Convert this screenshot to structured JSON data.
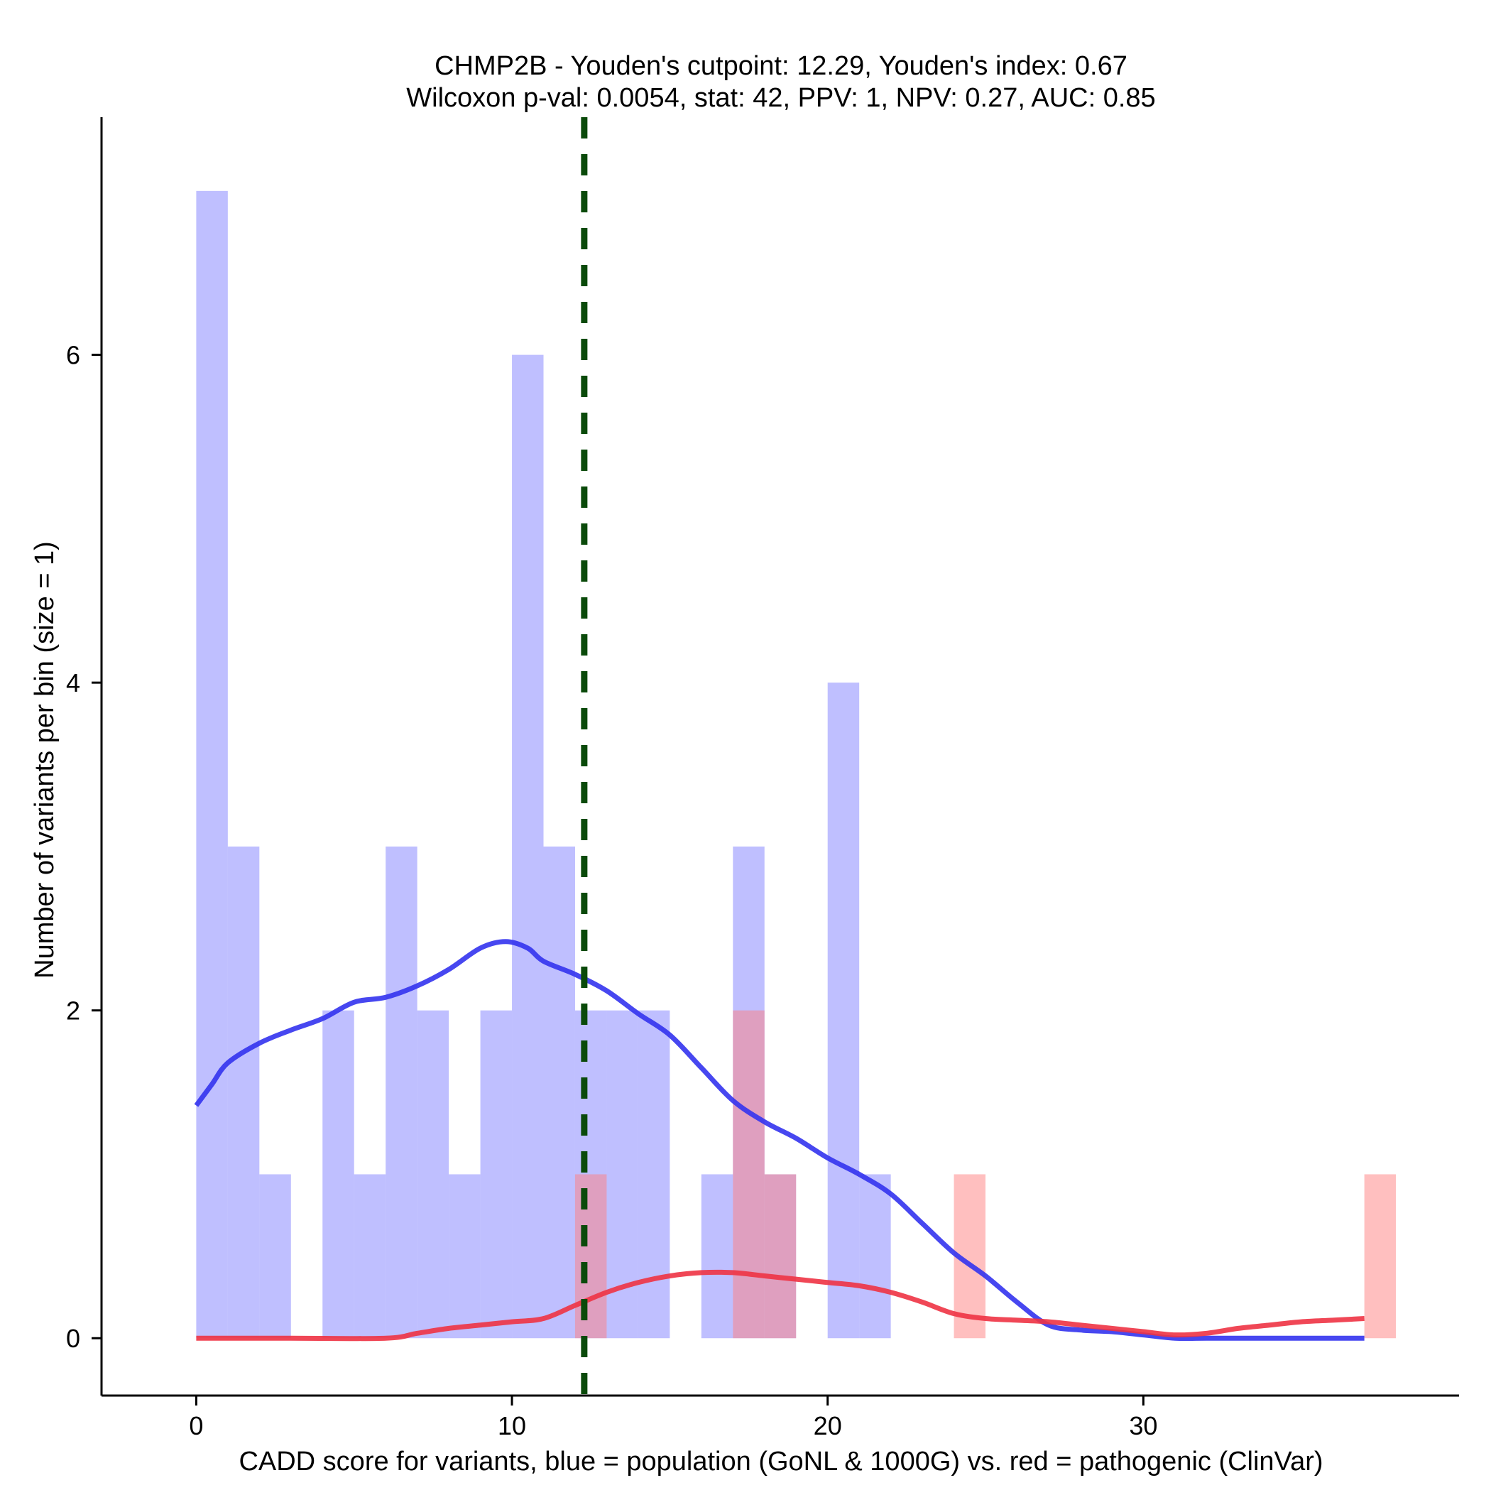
{
  "chart_data": {
    "type": "bar",
    "title_line1": "CHMP2B - Youden's cutpoint: 12.29, Youden's index: 0.67",
    "title_line2": "Wilcoxon p-val: 0.0054, stat: 42, PPV: 1, NPV: 0.27, AUC: 0.85",
    "xlabel": "CADD score for variants, blue = population (GoNL & 1000G) vs. red = pathogenic (ClinVar)",
    "ylabel": "Number of variants per bin (size = 1)",
    "xlim": [
      -3,
      40
    ],
    "ylim": [
      -0.35,
      7.45
    ],
    "x_ticks": [
      0,
      10,
      20,
      30
    ],
    "x_tick_labels": [
      "0",
      "10",
      "20",
      "30"
    ],
    "y_ticks": [
      0,
      2,
      4,
      6
    ],
    "y_tick_labels": [
      "0",
      "2",
      "4",
      "6"
    ],
    "bin_width": 1,
    "cutpoint": 12.29,
    "colors": {
      "population_bar": "#8080ff",
      "pathogenic_bar": "#ff8080",
      "population_line": "#3333ee",
      "pathogenic_line": "#ee3344",
      "cutpoint_line": "#0a4a0a"
    },
    "series": [
      {
        "name": "population (GoNL & 1000G)",
        "bins": [
          {
            "x": 0,
            "count": 7
          },
          {
            "x": 1,
            "count": 3
          },
          {
            "x": 2,
            "count": 1
          },
          {
            "x": 4,
            "count": 2
          },
          {
            "x": 5,
            "count": 1
          },
          {
            "x": 6,
            "count": 3
          },
          {
            "x": 7,
            "count": 2
          },
          {
            "x": 8,
            "count": 1
          },
          {
            "x": 9,
            "count": 2
          },
          {
            "x": 10,
            "count": 6
          },
          {
            "x": 11,
            "count": 3
          },
          {
            "x": 12,
            "count": 2
          },
          {
            "x": 13,
            "count": 2
          },
          {
            "x": 14,
            "count": 2
          },
          {
            "x": 16,
            "count": 1
          },
          {
            "x": 17,
            "count": 3
          },
          {
            "x": 18,
            "count": 1
          },
          {
            "x": 20,
            "count": 4
          },
          {
            "x": 21,
            "count": 1
          }
        ],
        "density": [
          [
            0,
            1.42
          ],
          [
            0.5,
            1.55
          ],
          [
            1,
            1.68
          ],
          [
            2,
            1.8
          ],
          [
            3,
            1.88
          ],
          [
            4,
            1.95
          ],
          [
            5,
            2.05
          ],
          [
            6,
            2.08
          ],
          [
            7,
            2.15
          ],
          [
            8,
            2.25
          ],
          [
            9,
            2.38
          ],
          [
            9.8,
            2.42
          ],
          [
            10.5,
            2.38
          ],
          [
            11,
            2.3
          ],
          [
            12,
            2.22
          ],
          [
            13,
            2.12
          ],
          [
            14,
            1.98
          ],
          [
            15,
            1.85
          ],
          [
            16,
            1.65
          ],
          [
            17,
            1.45
          ],
          [
            18,
            1.32
          ],
          [
            19,
            1.22
          ],
          [
            20,
            1.1
          ],
          [
            21,
            1.0
          ],
          [
            22,
            0.88
          ],
          [
            23,
            0.7
          ],
          [
            24,
            0.52
          ],
          [
            25,
            0.38
          ],
          [
            26,
            0.22
          ],
          [
            27,
            0.08
          ],
          [
            28,
            0.05
          ],
          [
            29,
            0.04
          ],
          [
            30,
            0.02
          ],
          [
            31,
            0.0
          ],
          [
            32,
            0.0
          ],
          [
            34,
            0.0
          ],
          [
            37,
            0.0
          ]
        ]
      },
      {
        "name": "pathogenic (ClinVar)",
        "bins": [
          {
            "x": 12,
            "count": 1
          },
          {
            "x": 17,
            "count": 2
          },
          {
            "x": 18,
            "count": 1
          },
          {
            "x": 24,
            "count": 1
          },
          {
            "x": 37,
            "count": 1
          }
        ],
        "density": [
          [
            0,
            0.0
          ],
          [
            3,
            0.0
          ],
          [
            6,
            0.0
          ],
          [
            7,
            0.03
          ],
          [
            8,
            0.06
          ],
          [
            9,
            0.08
          ],
          [
            10,
            0.1
          ],
          [
            11,
            0.12
          ],
          [
            12,
            0.2
          ],
          [
            13,
            0.28
          ],
          [
            14,
            0.34
          ],
          [
            15,
            0.38
          ],
          [
            16,
            0.4
          ],
          [
            17,
            0.4
          ],
          [
            18,
            0.38
          ],
          [
            19,
            0.36
          ],
          [
            20,
            0.34
          ],
          [
            21,
            0.32
          ],
          [
            22,
            0.28
          ],
          [
            23,
            0.22
          ],
          [
            24,
            0.15
          ],
          [
            25,
            0.12
          ],
          [
            26,
            0.11
          ],
          [
            27,
            0.1
          ],
          [
            28,
            0.08
          ],
          [
            29,
            0.06
          ],
          [
            30,
            0.04
          ],
          [
            31,
            0.02
          ],
          [
            32,
            0.03
          ],
          [
            33,
            0.06
          ],
          [
            34,
            0.08
          ],
          [
            35,
            0.1
          ],
          [
            36,
            0.11
          ],
          [
            37,
            0.12
          ]
        ]
      }
    ]
  }
}
